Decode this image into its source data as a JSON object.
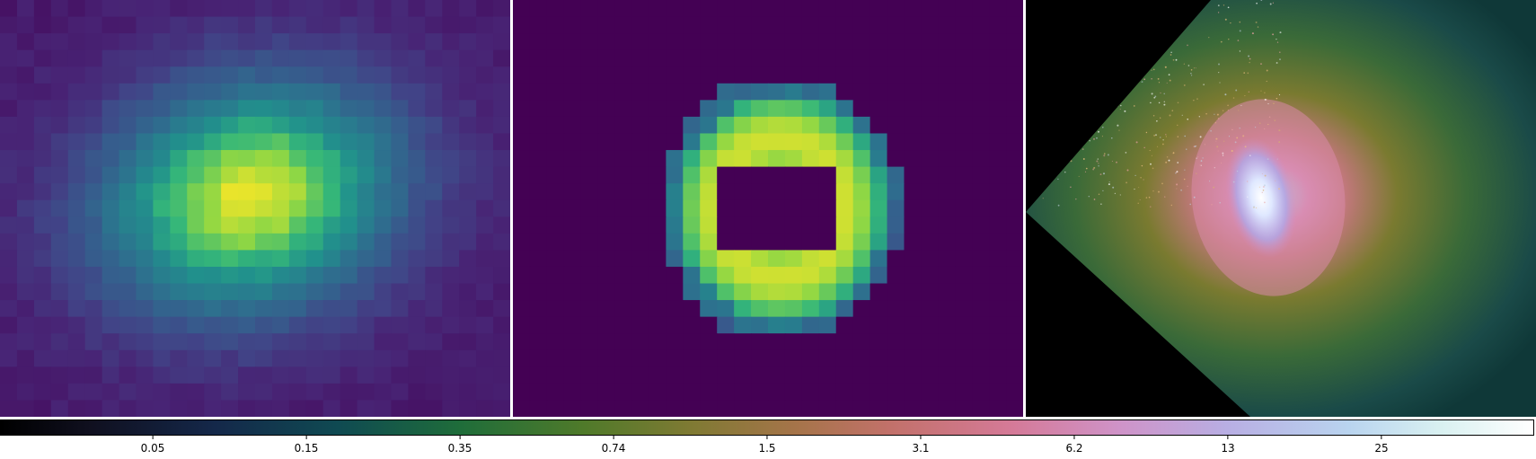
{
  "panels": [
    {
      "name": "viridis-pixel-map-smooth",
      "colormap": "viridis"
    },
    {
      "name": "viridis-pixel-map-masked",
      "colormap": "viridis"
    },
    {
      "name": "galaxy-image",
      "colormap": "cubehelix"
    }
  ],
  "colorbar": {
    "ticks": [
      "0.05",
      "0.15",
      "0.35",
      "0.74",
      "1.5",
      "3.1",
      "6.2",
      "13",
      "25"
    ],
    "colors": {
      "low": "#000000",
      "mid": "#c2716a",
      "high": "#ffffff"
    }
  },
  "colors": {
    "viridis_dark": "#440154",
    "viridis_mid": "#21918c",
    "viridis_bright": "#fde725",
    "galaxy_sky": "#0f3b3b",
    "galaxy_core": "#e8f2ff"
  }
}
